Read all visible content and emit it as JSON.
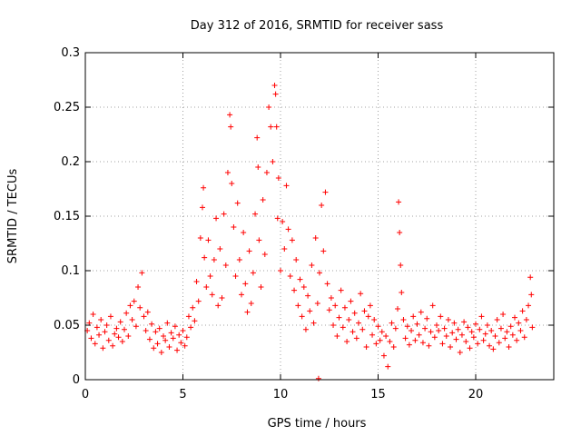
{
  "chart_data": {
    "type": "scatter",
    "title": "Day 312 of 2016, SRMTID for receiver sass",
    "xlabel": "GPS time / hours",
    "ylabel": "SRMTID / TECUs",
    "xlim": [
      0,
      24
    ],
    "ylim": [
      0,
      0.3
    ],
    "xticks": [
      0,
      5,
      10,
      15,
      20
    ],
    "xtick_labels": [
      "0",
      "5",
      "10",
      "15",
      "20"
    ],
    "yticks": [
      0,
      0.05,
      0.1,
      0.15,
      0.2,
      0.25,
      0.3
    ],
    "ytick_labels": [
      "0",
      "0.05",
      "0.1",
      "0.15",
      "0.2",
      "0.25",
      "0.3"
    ],
    "grid": true,
    "marker": "plus",
    "series": [
      {
        "name": "SRMTID",
        "color": "#ff0000",
        "points": [
          [
            0.1,
            0.045
          ],
          [
            0.2,
            0.052
          ],
          [
            0.3,
            0.038
          ],
          [
            0.4,
            0.06
          ],
          [
            0.5,
            0.033
          ],
          [
            0.6,
            0.048
          ],
          [
            0.7,
            0.041
          ],
          [
            0.8,
            0.055
          ],
          [
            0.9,
            0.029
          ],
          [
            1.0,
            0.044
          ],
          [
            1.1,
            0.05
          ],
          [
            1.2,
            0.036
          ],
          [
            1.3,
            0.058
          ],
          [
            1.4,
            0.031
          ],
          [
            1.5,
            0.042
          ],
          [
            1.6,
            0.047
          ],
          [
            1.7,
            0.039
          ],
          [
            1.8,
            0.053
          ],
          [
            1.9,
            0.035
          ],
          [
            2.0,
            0.046
          ],
          [
            2.1,
            0.061
          ],
          [
            2.2,
            0.04
          ],
          [
            2.3,
            0.068
          ],
          [
            2.4,
            0.055
          ],
          [
            2.5,
            0.072
          ],
          [
            2.6,
            0.049
          ],
          [
            2.7,
            0.085
          ],
          [
            2.8,
            0.066
          ],
          [
            2.9,
            0.098
          ],
          [
            3.0,
            0.058
          ],
          [
            3.1,
            0.045
          ],
          [
            3.2,
            0.062
          ],
          [
            3.3,
            0.037
          ],
          [
            3.4,
            0.051
          ],
          [
            3.5,
            0.029
          ],
          [
            3.6,
            0.044
          ],
          [
            3.7,
            0.033
          ],
          [
            3.8,
            0.047
          ],
          [
            3.9,
            0.025
          ],
          [
            4.0,
            0.04
          ],
          [
            4.1,
            0.036
          ],
          [
            4.2,
            0.052
          ],
          [
            4.3,
            0.03
          ],
          [
            4.4,
            0.043
          ],
          [
            4.5,
            0.038
          ],
          [
            4.6,
            0.049
          ],
          [
            4.7,
            0.027
          ],
          [
            4.8,
            0.041
          ],
          [
            4.9,
            0.034
          ],
          [
            5.0,
            0.045
          ],
          [
            5.1,
            0.031
          ],
          [
            5.2,
            0.039
          ],
          [
            5.3,
            0.058
          ],
          [
            5.4,
            0.048
          ],
          [
            5.5,
            0.066
          ],
          [
            5.6,
            0.054
          ],
          [
            5.7,
            0.09
          ],
          [
            5.8,
            0.072
          ],
          [
            5.9,
            0.13
          ],
          [
            6.0,
            0.158
          ],
          [
            6.05,
            0.176
          ],
          [
            6.1,
            0.112
          ],
          [
            6.2,
            0.085
          ],
          [
            6.3,
            0.128
          ],
          [
            6.4,
            0.095
          ],
          [
            6.5,
            0.078
          ],
          [
            6.6,
            0.11
          ],
          [
            6.7,
            0.148
          ],
          [
            6.8,
            0.068
          ],
          [
            6.9,
            0.12
          ],
          [
            7.0,
            0.075
          ],
          [
            7.1,
            0.152
          ],
          [
            7.2,
            0.105
          ],
          [
            7.3,
            0.19
          ],
          [
            7.4,
            0.243
          ],
          [
            7.45,
            0.232
          ],
          [
            7.5,
            0.18
          ],
          [
            7.6,
            0.14
          ],
          [
            7.7,
            0.095
          ],
          [
            7.8,
            0.162
          ],
          [
            7.9,
            0.11
          ],
          [
            8.0,
            0.078
          ],
          [
            8.1,
            0.135
          ],
          [
            8.2,
            0.088
          ],
          [
            8.3,
            0.062
          ],
          [
            8.4,
            0.118
          ],
          [
            8.5,
            0.07
          ],
          [
            8.6,
            0.098
          ],
          [
            8.7,
            0.152
          ],
          [
            8.8,
            0.222
          ],
          [
            8.85,
            0.195
          ],
          [
            8.9,
            0.128
          ],
          [
            9.0,
            0.085
          ],
          [
            9.1,
            0.165
          ],
          [
            9.2,
            0.115
          ],
          [
            9.3,
            0.19
          ],
          [
            9.4,
            0.25
          ],
          [
            9.5,
            0.232
          ],
          [
            9.6,
            0.2
          ],
          [
            9.7,
            0.27
          ],
          [
            9.75,
            0.262
          ],
          [
            9.8,
            0.232
          ],
          [
            9.85,
            0.148
          ],
          [
            9.9,
            0.185
          ],
          [
            10.0,
            0.1
          ],
          [
            10.1,
            0.145
          ],
          [
            10.2,
            0.12
          ],
          [
            10.3,
            0.178
          ],
          [
            10.4,
            0.138
          ],
          [
            10.5,
            0.095
          ],
          [
            10.6,
            0.128
          ],
          [
            10.7,
            0.082
          ],
          [
            10.8,
            0.11
          ],
          [
            10.9,
            0.068
          ],
          [
            11.0,
            0.092
          ],
          [
            11.1,
            0.058
          ],
          [
            11.2,
            0.085
          ],
          [
            11.3,
            0.046
          ],
          [
            11.4,
            0.077
          ],
          [
            11.5,
            0.063
          ],
          [
            11.6,
            0.105
          ],
          [
            11.7,
            0.052
          ],
          [
            11.8,
            0.13
          ],
          [
            11.9,
            0.07
          ],
          [
            11.95,
            0.001
          ],
          [
            12.0,
            0.098
          ],
          [
            12.1,
            0.16
          ],
          [
            12.2,
            0.118
          ],
          [
            12.3,
            0.172
          ],
          [
            12.4,
            0.088
          ],
          [
            12.5,
            0.064
          ],
          [
            12.6,
            0.075
          ],
          [
            12.7,
            0.05
          ],
          [
            12.8,
            0.068
          ],
          [
            12.9,
            0.04
          ],
          [
            13.0,
            0.057
          ],
          [
            13.1,
            0.082
          ],
          [
            13.2,
            0.048
          ],
          [
            13.3,
            0.066
          ],
          [
            13.4,
            0.035
          ],
          [
            13.5,
            0.055
          ],
          [
            13.6,
            0.072
          ],
          [
            13.7,
            0.044
          ],
          [
            13.8,
            0.061
          ],
          [
            13.9,
            0.038
          ],
          [
            14.0,
            0.052
          ],
          [
            14.1,
            0.079
          ],
          [
            14.2,
            0.046
          ],
          [
            14.3,
            0.063
          ],
          [
            14.4,
            0.03
          ],
          [
            14.5,
            0.058
          ],
          [
            14.6,
            0.068
          ],
          [
            14.7,
            0.041
          ],
          [
            14.8,
            0.055
          ],
          [
            14.9,
            0.033
          ],
          [
            15.0,
            0.049
          ],
          [
            15.1,
            0.036
          ],
          [
            15.2,
            0.044
          ],
          [
            15.3,
            0.022
          ],
          [
            15.4,
            0.04
          ],
          [
            15.5,
            0.012
          ],
          [
            15.6,
            0.035
          ],
          [
            15.7,
            0.052
          ],
          [
            15.8,
            0.03
          ],
          [
            15.9,
            0.047
          ],
          [
            16.0,
            0.065
          ],
          [
            16.05,
            0.163
          ],
          [
            16.1,
            0.135
          ],
          [
            16.15,
            0.105
          ],
          [
            16.2,
            0.08
          ],
          [
            16.3,
            0.055
          ],
          [
            16.4,
            0.038
          ],
          [
            16.5,
            0.049
          ],
          [
            16.6,
            0.032
          ],
          [
            16.7,
            0.045
          ],
          [
            16.8,
            0.058
          ],
          [
            16.9,
            0.036
          ],
          [
            17.0,
            0.051
          ],
          [
            17.1,
            0.041
          ],
          [
            17.2,
            0.062
          ],
          [
            17.3,
            0.034
          ],
          [
            17.4,
            0.047
          ],
          [
            17.5,
            0.056
          ],
          [
            17.6,
            0.031
          ],
          [
            17.7,
            0.044
          ],
          [
            17.8,
            0.068
          ],
          [
            17.9,
            0.039
          ],
          [
            18.0,
            0.05
          ],
          [
            18.1,
            0.045
          ],
          [
            18.2,
            0.058
          ],
          [
            18.3,
            0.033
          ],
          [
            18.4,
            0.047
          ],
          [
            18.5,
            0.04
          ],
          [
            18.6,
            0.055
          ],
          [
            18.7,
            0.03
          ],
          [
            18.8,
            0.043
          ],
          [
            18.9,
            0.052
          ],
          [
            19.0,
            0.037
          ],
          [
            19.1,
            0.046
          ],
          [
            19.2,
            0.025
          ],
          [
            19.3,
            0.041
          ],
          [
            19.4,
            0.053
          ],
          [
            19.5,
            0.035
          ],
          [
            19.6,
            0.048
          ],
          [
            19.7,
            0.029
          ],
          [
            19.8,
            0.044
          ],
          [
            19.9,
            0.039
          ],
          [
            20.0,
            0.051
          ],
          [
            20.1,
            0.033
          ],
          [
            20.2,
            0.046
          ],
          [
            20.3,
            0.058
          ],
          [
            20.4,
            0.036
          ],
          [
            20.5,
            0.042
          ],
          [
            20.6,
            0.05
          ],
          [
            20.7,
            0.031
          ],
          [
            20.8,
            0.045
          ],
          [
            20.9,
            0.028
          ],
          [
            21.0,
            0.04
          ],
          [
            21.1,
            0.055
          ],
          [
            21.2,
            0.034
          ],
          [
            21.3,
            0.047
          ],
          [
            21.4,
            0.06
          ],
          [
            21.5,
            0.038
          ],
          [
            21.6,
            0.044
          ],
          [
            21.7,
            0.03
          ],
          [
            21.8,
            0.049
          ],
          [
            21.9,
            0.041
          ],
          [
            22.0,
            0.057
          ],
          [
            22.1,
            0.036
          ],
          [
            22.2,
            0.052
          ],
          [
            22.3,
            0.045
          ],
          [
            22.4,
            0.063
          ],
          [
            22.5,
            0.039
          ],
          [
            22.6,
            0.055
          ],
          [
            22.7,
            0.068
          ],
          [
            22.8,
            0.094
          ],
          [
            22.85,
            0.078
          ],
          [
            22.9,
            0.048
          ]
        ]
      }
    ]
  }
}
